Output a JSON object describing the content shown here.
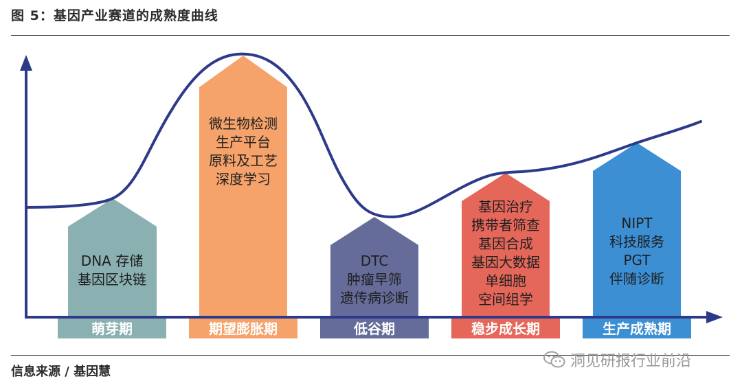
{
  "figure": {
    "title": "图 5：基因产业赛道的成熟度曲线"
  },
  "source": "信息来源 / 基因慧",
  "watermark": {
    "icon": "wechat-icon",
    "text": "洞见研报行业前沿"
  },
  "stages": [
    {
      "label": "萌芽期",
      "color": "#8ab0b2",
      "items": [
        "DNA 存储",
        "基因区块链"
      ]
    },
    {
      "label": "期望膨胀期",
      "color": "#f5a26b",
      "items": [
        "微生物检测",
        "生产平台",
        "原料及工艺",
        "深度学习"
      ]
    },
    {
      "label": "低谷期",
      "color": "#656c9a",
      "items": [
        "DTC",
        "肿瘤早筛",
        "遗传病诊断"
      ]
    },
    {
      "label": "稳步成长期",
      "color": "#e5675a",
      "items": [
        "基因治疗",
        "携带者筛查",
        "基因合成",
        "基因大数据",
        "单细胞",
        "空间组学"
      ]
    },
    {
      "label": "生产成熟期",
      "color": "#3d8fd3",
      "items": [
        "NIPT",
        "科技服务",
        "PGT",
        "伴随诊断"
      ]
    }
  ],
  "colors": {
    "curve": "#2d3a8a",
    "axis": "#2d3a8a"
  }
}
